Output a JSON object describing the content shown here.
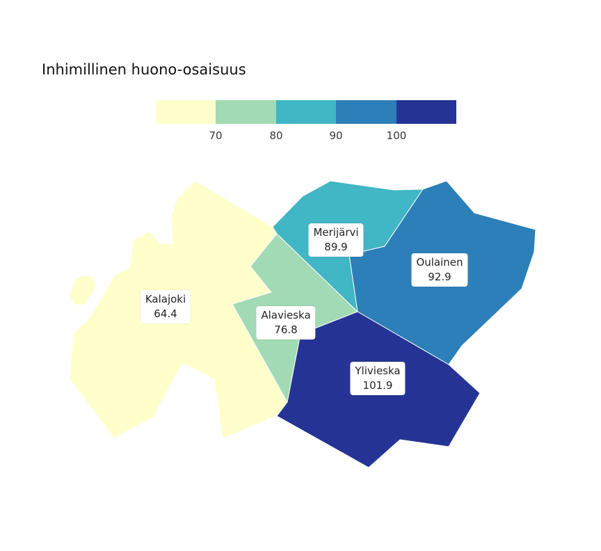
{
  "title": "Inhimillinen huono-osaisuus",
  "legend": {
    "colors": [
      "#ffffcc",
      "#a1dab4",
      "#41b6c4",
      "#2c7fb8",
      "#253494"
    ],
    "ticks": [
      "70",
      "80",
      "90",
      "100"
    ]
  },
  "regions": [
    {
      "name": "Kalajoki",
      "value": "64.4",
      "color": "#ffffcc"
    },
    {
      "name": "Alavieska",
      "value": "76.8",
      "color": "#a1dab4"
    },
    {
      "name": "Merijärvi",
      "value": "89.9",
      "color": "#41b6c4"
    },
    {
      "name": "Oulainen",
      "value": "92.9",
      "color": "#2c7fb8"
    },
    {
      "name": "Ylivieska",
      "value": "101.9",
      "color": "#253494"
    }
  ]
}
